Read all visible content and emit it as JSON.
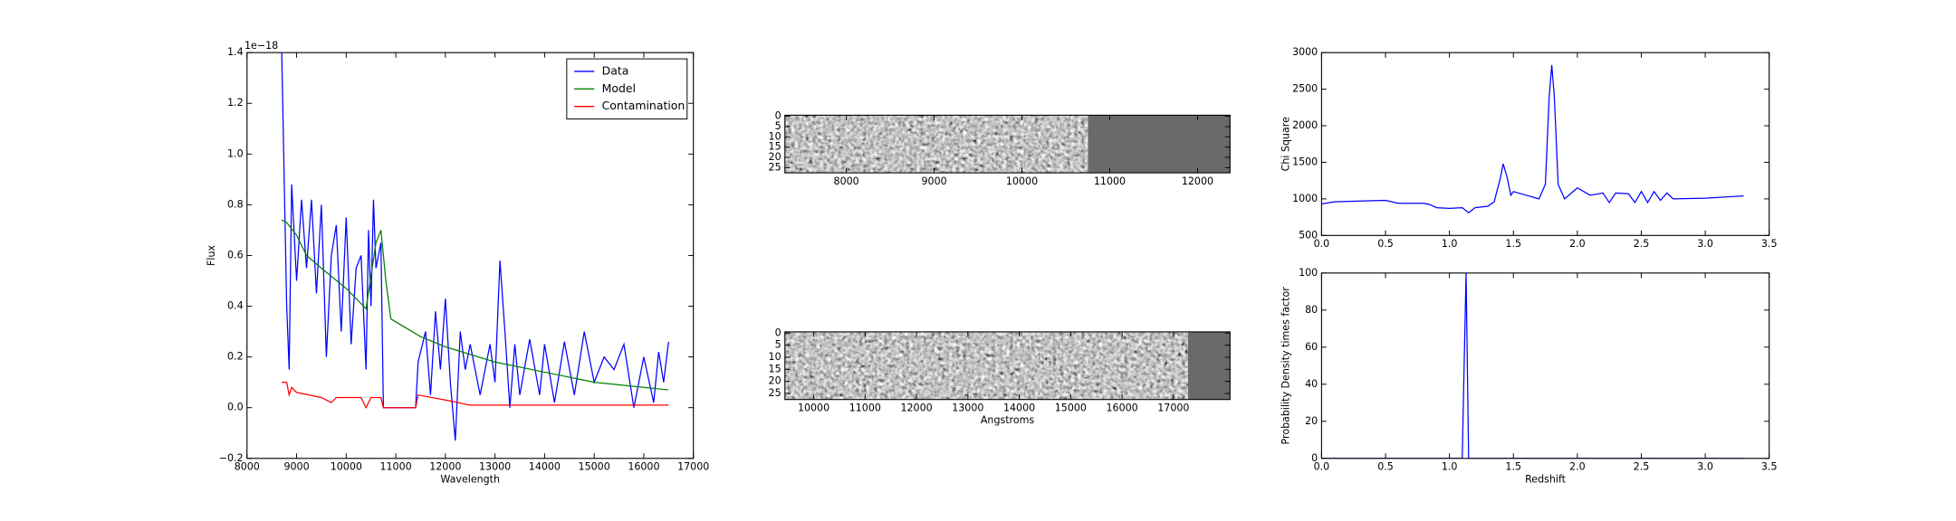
{
  "chart_data": [
    {
      "type": "line",
      "xlabel": "Wavelength",
      "ylabel": "Flux",
      "offset_text": "1e−18",
      "xlim": [
        8000,
        17000
      ],
      "ylim": [
        -0.2,
        1.4
      ],
      "xticks": [
        8000,
        9000,
        10000,
        11000,
        12000,
        13000,
        14000,
        15000,
        16000,
        17000
      ],
      "yticks": [
        {
          "value": -0.2,
          "label": "−0.2"
        },
        {
          "value": 0,
          "label": "0.0"
        },
        0.2,
        0.4,
        0.6,
        0.8,
        {
          "value": 1,
          "label": "1.0"
        },
        1.2,
        1.4
      ],
      "legend": "upper right",
      "series": [
        {
          "name": "Data",
          "color": "#0000ff",
          "x": [
            8700,
            8800,
            8850,
            8900,
            9000,
            9100,
            9200,
            9300,
            9400,
            9500,
            9600,
            9700,
            9800,
            9900,
            10000,
            10100,
            10200,
            10300,
            10400,
            10450,
            10500,
            10550,
            10600,
            10700,
            10750,
            11000,
            11400,
            11450,
            11600,
            11700,
            11800,
            11900,
            12000,
            12100,
            12200,
            12300,
            12400,
            12500,
            12700,
            12900,
            13000,
            13100,
            13200,
            13300,
            13400,
            13500,
            13700,
            13900,
            14000,
            14200,
            14400,
            14600,
            14800,
            15000,
            15200,
            15400,
            15600,
            15800,
            16000,
            16200,
            16300,
            16400,
            16500
          ],
          "values": [
            1.4,
            0.4,
            0.15,
            0.88,
            0.5,
            0.82,
            0.55,
            0.82,
            0.45,
            0.8,
            0.2,
            0.6,
            0.72,
            0.3,
            0.75,
            0.25,
            0.55,
            0.6,
            0.15,
            0.7,
            0.4,
            0.82,
            0.55,
            0.65,
            0.0,
            0.0,
            0.0,
            0.18,
            0.3,
            0.05,
            0.38,
            0.15,
            0.43,
            0.1,
            -0.13,
            0.3,
            0.15,
            0.25,
            0.05,
            0.25,
            0.1,
            0.58,
            0.3,
            0.0,
            0.25,
            0.05,
            0.27,
            0.05,
            0.25,
            0.02,
            0.26,
            0.05,
            0.3,
            0.1,
            0.2,
            0.15,
            0.25,
            0.0,
            0.2,
            0.02,
            0.22,
            0.1,
            0.26
          ]
        },
        {
          "name": "Model",
          "color": "#008000",
          "x": [
            8700,
            8800,
            9000,
            9200,
            9500,
            10000,
            10400,
            10600,
            10700,
            10800,
            10900,
            11500,
            12000,
            13000,
            14000,
            15000,
            16000,
            16500
          ],
          "values": [
            0.74,
            0.73,
            0.68,
            0.6,
            0.55,
            0.47,
            0.39,
            0.65,
            0.7,
            0.5,
            0.35,
            0.28,
            0.24,
            0.18,
            0.14,
            0.1,
            0.08,
            0.07
          ]
        },
        {
          "name": "Contamination",
          "color": "#ff0000",
          "x": [
            8700,
            8800,
            8850,
            8900,
            9000,
            9500,
            9700,
            9800,
            10300,
            10400,
            10500,
            10700,
            10750,
            11400,
            11450,
            12000,
            12500,
            13000,
            16500
          ],
          "values": [
            0.1,
            0.1,
            0.05,
            0.08,
            0.06,
            0.04,
            0.02,
            0.04,
            0.04,
            0.0,
            0.04,
            0.04,
            0.0,
            0.0,
            0.05,
            0.03,
            0.01,
            0.01,
            0.01
          ]
        }
      ]
    },
    {
      "type": "image",
      "xlim": [
        7300,
        12370
      ],
      "ylim": [
        27.5,
        -0.5
      ],
      "xticks": [
        8000,
        9000,
        10000,
        11000,
        12000
      ],
      "yticks": [
        0,
        5,
        10,
        15,
        20,
        25
      ]
    },
    {
      "type": "image",
      "xlabel": "Angstroms",
      "xlim": [
        9440,
        18100
      ],
      "ylim": [
        27.5,
        -0.5
      ],
      "xticks": [
        10000,
        11000,
        12000,
        13000,
        14000,
        15000,
        16000,
        17000
      ],
      "yticks": [
        0,
        5,
        10,
        15,
        20,
        25
      ]
    },
    {
      "type": "line",
      "ylabel": "Chi Square",
      "xlim": [
        0,
        3.5
      ],
      "ylim": [
        500,
        3000
      ],
      "xticks": [
        {
          "value": 0,
          "label": "0.0"
        },
        0.5,
        {
          "value": 1,
          "label": "1.0"
        },
        1.5,
        {
          "value": 2,
          "label": "2.0"
        },
        2.5,
        {
          "value": 3,
          "label": "3.0"
        },
        3.5
      ],
      "yticks": [
        500,
        1000,
        1500,
        2000,
        2500,
        3000
      ],
      "series": [
        {
          "color": "#0000ff",
          "x": [
            0,
            0.1,
            0.3,
            0.5,
            0.6,
            0.8,
            0.85,
            0.9,
            1.0,
            1.1,
            1.15,
            1.2,
            1.3,
            1.35,
            1.4,
            1.42,
            1.45,
            1.48,
            1.5,
            1.6,
            1.7,
            1.75,
            1.78,
            1.8,
            1.82,
            1.85,
            1.9,
            2.0,
            2.1,
            2.2,
            2.25,
            2.3,
            2.4,
            2.45,
            2.5,
            2.55,
            2.6,
            2.65,
            2.7,
            2.75,
            3.0,
            3.3
          ],
          "values": [
            930,
            960,
            970,
            980,
            940,
            940,
            920,
            880,
            870,
            880,
            810,
            880,
            900,
            960,
            1300,
            1480,
            1300,
            1050,
            1100,
            1050,
            1000,
            1200,
            2400,
            2830,
            2400,
            1200,
            1000,
            1150,
            1050,
            1080,
            950,
            1080,
            1070,
            950,
            1100,
            950,
            1100,
            980,
            1080,
            1000,
            1010,
            1040
          ]
        }
      ]
    },
    {
      "type": "line",
      "xlabel": "Redshift",
      "ylabel": "Probability Density times factor",
      "xlim": [
        0,
        3.5
      ],
      "ylim": [
        0,
        100
      ],
      "xticks": [
        {
          "value": 0,
          "label": "0.0"
        },
        0.5,
        {
          "value": 1,
          "label": "1.0"
        },
        1.5,
        {
          "value": 2,
          "label": "2.0"
        },
        2.5,
        {
          "value": 3,
          "label": "3.0"
        },
        3.5
      ],
      "yticks": [
        0,
        20,
        40,
        60,
        80,
        100
      ],
      "series": [
        {
          "color": "#0000ff",
          "x": [
            0,
            1.1,
            1.13,
            1.15,
            3.3
          ],
          "values": [
            0,
            0,
            100,
            0,
            0
          ]
        }
      ]
    }
  ]
}
